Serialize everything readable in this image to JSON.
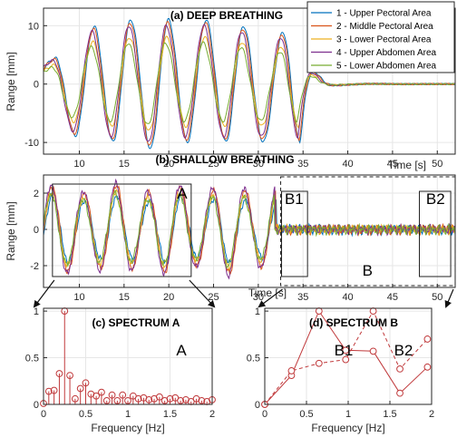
{
  "colors": {
    "s1": "#0072BD",
    "s2": "#D95319",
    "s3": "#EDB120",
    "s4": "#7E2F8E",
    "s5": "#77AC30",
    "stem": "#C0393B",
    "grid": "#e6e6e6",
    "axis": "#262626"
  },
  "chart_data": [
    {
      "id": "deep",
      "type": "line",
      "title": "(a) DEEP BREATHING",
      "xlabel": "Time [s]",
      "ylabel": "Range [mm]",
      "xlim": [
        6,
        52
      ],
      "ylim": [
        -12,
        13
      ],
      "xticks": [
        10,
        15,
        20,
        25,
        30,
        35,
        40,
        45,
        50
      ],
      "yticks": [
        -10,
        0,
        10
      ],
      "grid": true,
      "legend": {
        "placement": "top-right",
        "entries": [
          "1 - Upper Pectoral Area",
          "2 - Middle Pectoral Area",
          "3 - Lower Pectoral Area",
          "4 - Upper Abdomen Area",
          "5 - Lower Abdomen Area"
        ]
      },
      "signal": {
        "breathing_end_s": 35.5,
        "cycle_peaks_s": [
          7.2,
          11.5,
          15.6,
          19.8,
          24.0,
          28.2,
          32.6
        ],
        "cycle_troughs_s": [
          9.4,
          13.6,
          17.8,
          21.9,
          26.2,
          30.4,
          34.5
        ],
        "peak_mm": [
          4,
          9,
          10,
          10,
          10,
          9,
          8
        ],
        "trough_mm": [
          -8,
          -9,
          -10,
          -9,
          -9,
          -9,
          -9
        ],
        "rest_level_mm": 0,
        "series_amplitude_scale": [
          1.1,
          1.05,
          0.8,
          1.0,
          0.7
        ]
      }
    },
    {
      "id": "shallow",
      "type": "line",
      "title": "(b) SHALLOW BREATHING",
      "xlabel": "Time [s]",
      "ylabel": "Range [mm]",
      "xlim": [
        6,
        52
      ],
      "ylim": [
        -3.2,
        3
      ],
      "xticks": [
        10,
        15,
        20,
        25,
        30,
        35,
        40,
        45,
        50
      ],
      "yticks": [
        -2,
        0,
        2
      ],
      "grid": true,
      "regions": [
        {
          "label": "A",
          "x": [
            7,
            22.5
          ],
          "y": [
            -2.6,
            2.5
          ],
          "style": "solid"
        },
        {
          "label": "B",
          "x": [
            32.5,
            52
          ],
          "y": [
            -3.1,
            2.9
          ],
          "style": "dashed"
        },
        {
          "label": "B1",
          "x": [
            32.6,
            35.5
          ],
          "y": [
            -2.6,
            2.1
          ],
          "style": "solid"
        },
        {
          "label": "B2",
          "x": [
            48,
            51.5
          ],
          "y": [
            -2.6,
            2.1
          ],
          "style": "solid"
        }
      ],
      "signal": {
        "breathing_end_s": 32,
        "cycle_period_s": 3.6,
        "first_peak_s": 7.0,
        "amplitude_mm": 2.0,
        "noise_mm": 0.25
      }
    },
    {
      "id": "specA",
      "type": "stem",
      "title": "(c) SPECTRUM A",
      "label": "A",
      "xlabel": "Frequency [Hz]",
      "xlim": [
        0,
        2
      ],
      "ylim": [
        0,
        1.03
      ],
      "xticks": [
        0,
        0.5,
        1,
        1.5,
        2
      ],
      "yticks": [
        0,
        0.5,
        1
      ],
      "grid": true,
      "x": [
        0,
        0.0625,
        0.125,
        0.1875,
        0.25,
        0.3125,
        0.375,
        0.4375,
        0.5,
        0.5625,
        0.625,
        0.6875,
        0.75,
        0.8125,
        0.875,
        0.9375,
        1.0,
        1.0625,
        1.125,
        1.1875,
        1.25,
        1.3125,
        1.375,
        1.4375,
        1.5,
        1.5625,
        1.625,
        1.6875,
        1.75,
        1.8125,
        1.875,
        1.9375,
        2.0
      ],
      "y": [
        0.01,
        0.14,
        0.15,
        0.33,
        1.0,
        0.31,
        0.06,
        0.17,
        0.23,
        0.11,
        0.09,
        0.13,
        0.04,
        0.1,
        0.04,
        0.1,
        0.04,
        0.09,
        0.06,
        0.07,
        0.05,
        0.06,
        0.08,
        0.04,
        0.06,
        0.07,
        0.04,
        0.05,
        0.03,
        0.06,
        0.04,
        0.03,
        0.05
      ]
    },
    {
      "id": "specB",
      "type": "line",
      "title": "(d) SPECTRUM B",
      "xlabel": "Frequency [Hz]",
      "xlim": [
        0,
        2
      ],
      "ylim": [
        0,
        1.03
      ],
      "xticks": [
        0,
        0.5,
        1,
        1.5,
        2
      ],
      "yticks": [
        0,
        0.5,
        1
      ],
      "grid": true,
      "series": [
        {
          "name": "B1",
          "style": "solid",
          "x": [
            0,
            0.32,
            0.65,
            0.97,
            1.3,
            1.62,
            1.95
          ],
          "y": [
            0.0,
            0.31,
            1.0,
            0.58,
            0.57,
            0.12,
            0.4
          ]
        },
        {
          "name": "B2",
          "style": "dashed",
          "x": [
            0,
            0.32,
            0.65,
            0.97,
            1.3,
            1.62,
            1.95
          ],
          "y": [
            0.0,
            0.36,
            0.44,
            0.48,
            1.0,
            0.38,
            0.7
          ]
        }
      ]
    }
  ]
}
